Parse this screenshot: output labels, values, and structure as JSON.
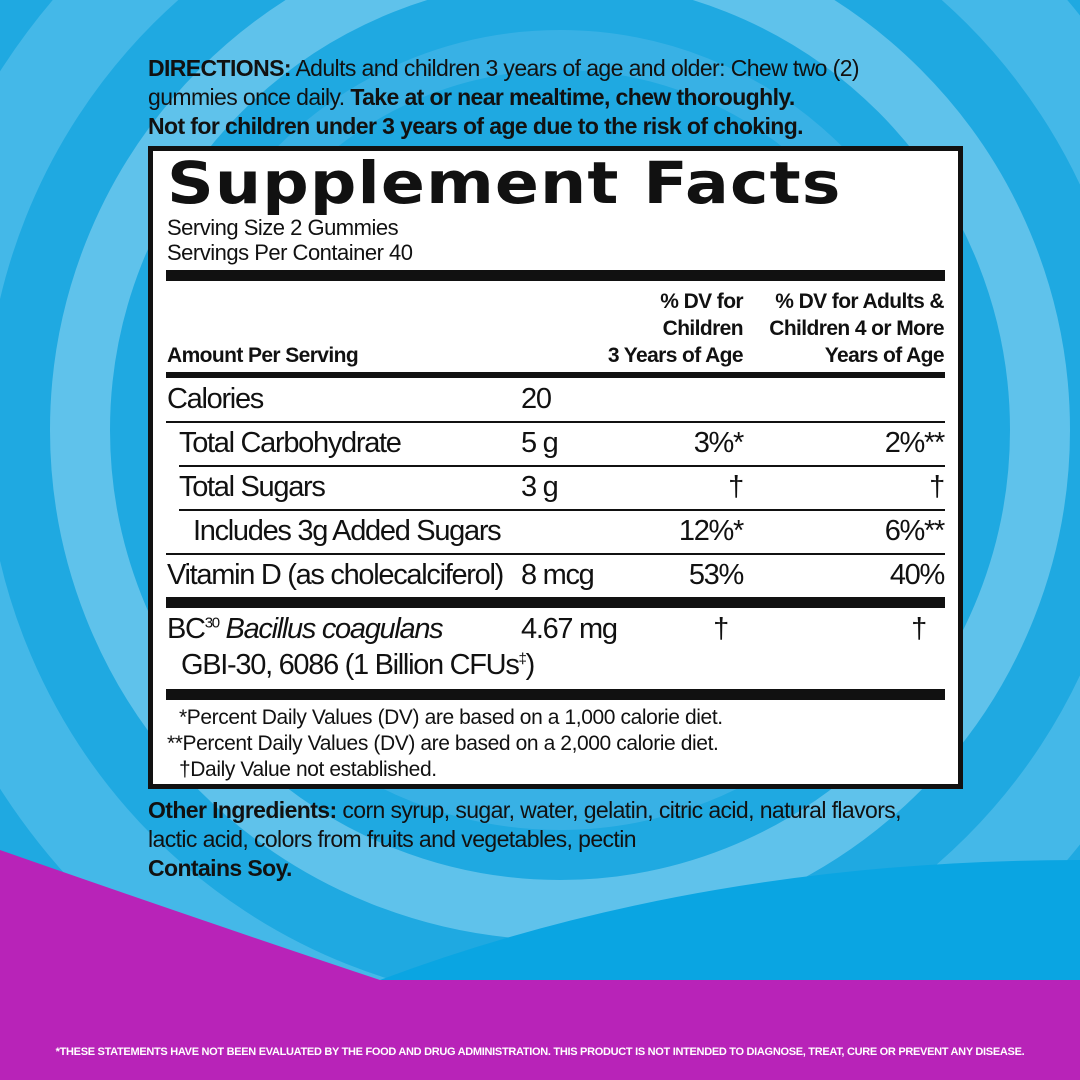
{
  "colors": {
    "background_blue": "#1fa9e1",
    "swirl_light": "#7fd0f0",
    "purple": "#b823b8"
  },
  "directions": {
    "label": "DIRECTIONS:",
    "text1": "Adults and children 3 years of age and older: Chew two (2)",
    "text2": "gummies once daily.",
    "bold2": "Take at or near mealtime, chew thoroughly.",
    "bold3": "Not for children under 3 years of age due to the risk of choking."
  },
  "facts": {
    "title": "Supplement Facts",
    "serving_size": "Serving Size 2 Gummies",
    "servings_per_container": "Servings Per Container 40",
    "header": {
      "amount": "Amount Per Serving",
      "dv_children": [
        "% DV for",
        "Children",
        "3 Years of Age"
      ],
      "dv_adults": [
        "% DV for Adults &",
        "Children 4 or More",
        "Years of Age"
      ]
    },
    "rows": [
      {
        "name": "Calories",
        "amount": "20",
        "dv_children": "",
        "dv_adults": ""
      },
      {
        "name": "Total Carbohydrate",
        "amount": "5 g",
        "dv_children": "3%*",
        "dv_adults": "2%**"
      },
      {
        "name": "Total Sugars",
        "amount": "3 g",
        "dv_children": "†",
        "dv_adults": "†"
      },
      {
        "name": "Includes 3g Added Sugars",
        "amount": "",
        "dv_children": "12%*",
        "dv_adults": "6%**"
      },
      {
        "name": "Vitamin D (as cholecalciferol)",
        "amount": "8 mcg",
        "dv_children": "53%",
        "dv_adults": "40%"
      }
    ],
    "probiotic": {
      "prefix": "BC",
      "sup": "30",
      "name": "Bacillus coagulans",
      "line2": "GBI-30, 6086 (1 Billion CFUs",
      "line2_sup": "‡",
      "line2_end": ")",
      "amount": "4.67 mg",
      "dv_children": "†",
      "dv_adults": "†"
    },
    "footnotes": [
      "*Percent Daily Values (DV) are based on a 1,000 calorie diet.",
      "**Percent Daily Values (DV) are based on a 2,000 calorie diet.",
      "†Daily Value not established."
    ]
  },
  "ingredients": {
    "label": "Other Ingredients:",
    "text1": "corn syrup, sugar, water, gelatin, citric acid, natural flavors,",
    "text2": "lactic acid, colors from fruits and vegetables, pectin",
    "contains": "Contains Soy."
  },
  "disclaimer": "*THESE STATEMENTS HAVE NOT BEEN EVALUATED BY THE FOOD AND DRUG ADMINISTRATION. THIS PRODUCT IS NOT INTENDED TO DIAGNOSE, TREAT, CURE OR PREVENT ANY DISEASE."
}
